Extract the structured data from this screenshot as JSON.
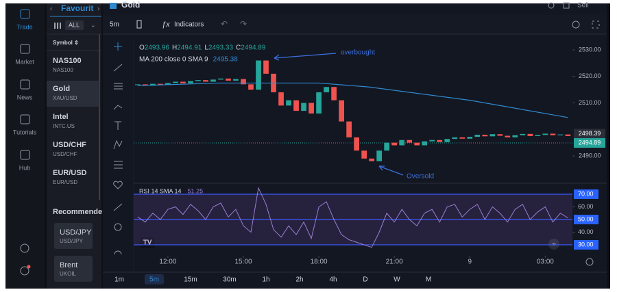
{
  "nav": [
    {
      "label": "Trade",
      "active": true
    },
    {
      "label": "Market"
    },
    {
      "label": "News"
    },
    {
      "label": "Tutorials"
    },
    {
      "label": "Hub"
    }
  ],
  "watchlist": {
    "title": "Favourit",
    "filter": "ALL",
    "column": "Symbol ⇕",
    "rows": [
      {
        "name": "NAS100",
        "code": "NAS100"
      },
      {
        "name": "Gold",
        "code": "XAU/USD",
        "active": true
      },
      {
        "name": "Intel",
        "code": "INTC.US"
      },
      {
        "name": "USD/CHF",
        "code": "USD/CHF"
      },
      {
        "name": "EUR/USD",
        "code": "EUR/USD"
      }
    ],
    "recommended_title": "Recommende",
    "recommended": [
      {
        "name": "USD/JPY",
        "code": "USD/JPY"
      },
      {
        "name": "Brent",
        "code": "UKOIL"
      }
    ]
  },
  "header": {
    "symbol": "Gold",
    "action": "Sell"
  },
  "toolbar": {
    "interval": "5m",
    "indicators": "Indicators"
  },
  "timeframes": [
    {
      "label": "1m"
    },
    {
      "label": "5m",
      "active": true
    },
    {
      "label": "15m"
    },
    {
      "label": "30m"
    },
    {
      "label": "1h"
    },
    {
      "label": "2h"
    },
    {
      "label": "4h"
    },
    {
      "label": "D"
    },
    {
      "label": "W"
    },
    {
      "label": "M"
    }
  ],
  "chart_data": {
    "type": "candlestick",
    "up_color": "#26a69a",
    "down_color": "#ef5350",
    "ohlc": [
      {
        "label": "O",
        "value": 2493.96
      },
      {
        "label": "H",
        "value": 2494.91
      },
      {
        "label": "L",
        "value": 2493.33
      },
      {
        "label": "C",
        "value": 2494.89
      }
    ],
    "x": [
      10.8,
      11.1,
      11.4,
      11.7,
      12.0,
      12.3,
      12.6,
      12.9,
      13.2,
      13.5,
      13.8,
      14.1,
      14.4,
      14.7,
      15.0,
      15.3,
      15.6,
      15.9,
      16.2,
      16.5,
      16.8,
      17.1,
      17.4,
      17.7,
      18.0,
      18.3,
      18.6,
      18.9,
      19.2,
      19.5,
      19.8,
      20.1,
      20.4,
      20.7,
      21.0,
      21.3,
      21.6,
      21.9,
      22.2,
      22.5,
      22.8,
      23.1,
      23.4,
      23.7,
      24.0,
      24.3,
      24.6,
      24.9,
      25.2,
      25.5,
      25.8,
      26.1,
      26.4,
      26.7,
      27.0,
      27.3,
      27.6,
      27.9
    ],
    "values": [
      2517,
      2516.5,
      2517.2,
      2516.8,
      2517.5,
      2518,
      2517.4,
      2518.2,
      2518.6,
      2518,
      2518.8,
      2519.2,
      2518.4,
      2519,
      2517,
      2515,
      2526,
      2521,
      2514,
      2509,
      2511,
      2507,
      2510,
      2506,
      2514,
      2516,
      2511,
      2503,
      2497,
      2492,
      2489,
      2488,
      2492,
      2495,
      2494,
      2496,
      2495,
      2494,
      2495.5,
      2496,
      2495.2,
      2496.4,
      2497,
      2496.5,
      2497.2,
      2498,
      2497.4,
      2498.2,
      2497.6,
      2497,
      2497.8,
      2498.3,
      2497.5,
      2497.9,
      2498.4,
      2497.8,
      2498.1,
      2497.5
    ],
    "ma": {
      "label": "MA 200 close 0 SMA 9",
      "value": 2495.38,
      "color": "#2f8ad0",
      "x": [
        10.8,
        14,
        18,
        20,
        24,
        27.9
      ],
      "values": [
        2516.5,
        2517.5,
        2517.5,
        2516,
        2511,
        2504.5
      ]
    },
    "xlim": [
      10.64,
      28.08
    ],
    "xticks": [
      {
        "value": 12,
        "label": "12:00"
      },
      {
        "value": 15,
        "label": "15:00"
      },
      {
        "value": 18,
        "label": "18:00"
      },
      {
        "value": 21,
        "label": "21:00"
      },
      {
        "value": 24,
        "label": "9"
      },
      {
        "value": 27,
        "label": "03:00"
      }
    ],
    "ylim": [
      2480.45,
      2533.35
    ],
    "yticks": [
      {
        "value": 2530,
        "label": "2530.00"
      },
      {
        "value": 2520,
        "label": "2520.00"
      },
      {
        "value": 2510,
        "label": "2510.00"
      },
      {
        "value": 2490,
        "label": "2490.00"
      }
    ],
    "price_tags": [
      {
        "value": 2498.39,
        "color": "#2a2e39"
      },
      {
        "value": 2494.89,
        "color": "#26a69a"
      }
    ],
    "annotations": [
      {
        "text": "overbought"
      },
      {
        "text": "Oversold"
      }
    ],
    "rsi": {
      "label": "RSI 14 SMA 14",
      "value": 51.25,
      "color": "#9b7fd4",
      "values": [
        52,
        48,
        55,
        50,
        58,
        60,
        54,
        62,
        57,
        50,
        60,
        63,
        52,
        58,
        45,
        40,
        75,
        62,
        42,
        36,
        45,
        38,
        48,
        35,
        60,
        64,
        50,
        38,
        34,
        32,
        30,
        28,
        40,
        55,
        48,
        58,
        50,
        45,
        55,
        58,
        48,
        60,
        62,
        52,
        58,
        62,
        50,
        60,
        55,
        48,
        58,
        62,
        50,
        56,
        60,
        48,
        55,
        51.25
      ],
      "ylim": [
        23.5,
        76.5
      ],
      "yticks": [
        {
          "value": 70,
          "label": "70.00",
          "level": true
        },
        {
          "value": 60,
          "label": "60.00"
        },
        {
          "value": 50,
          "label": "50.00",
          "level": true
        },
        {
          "value": 40,
          "label": "40.00"
        },
        {
          "value": 30,
          "label": "30.00",
          "level": true
        }
      ]
    }
  }
}
